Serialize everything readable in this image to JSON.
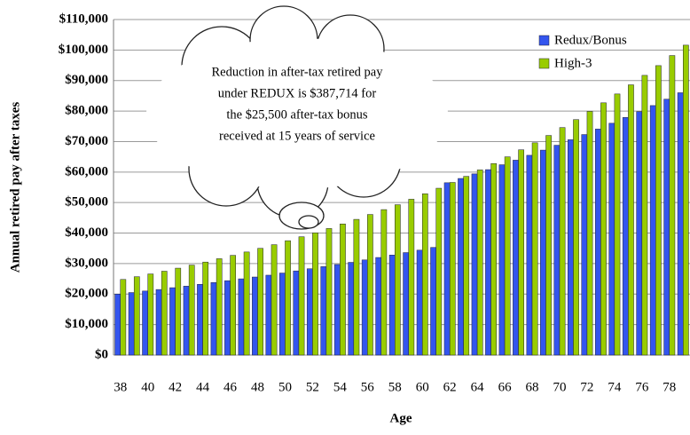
{
  "chart_data": {
    "type": "bar",
    "xlabel": "Age",
    "ylabel": "Annual retired pay after taxes",
    "annotation": [
      "Reduction in after-tax retired pay",
      "under REDUX is $387,714 for",
      "the $25,500 after-tax bonus",
      "received at 15 years of service"
    ],
    "categories": [
      38,
      null,
      40,
      null,
      42,
      null,
      44,
      null,
      46,
      null,
      48,
      null,
      50,
      null,
      52,
      null,
      54,
      null,
      56,
      null,
      58,
      null,
      60,
      null,
      62,
      null,
      64,
      null,
      66,
      null,
      68,
      null,
      70,
      null,
      72,
      null,
      74,
      null,
      76,
      null,
      78,
      null
    ],
    "series": [
      {
        "name": "Redux/Bonus",
        "color": "#3355ee",
        "values": [
          20000,
          20500,
          21000,
          21500,
          22100,
          22600,
          23200,
          23800,
          24400,
          25000,
          25600,
          26200,
          26900,
          27600,
          28300,
          29000,
          29700,
          30400,
          31200,
          32000,
          32800,
          33600,
          34400,
          35300,
          56500,
          57900,
          59400,
          60800,
          62400,
          63900,
          65500,
          67200,
          68800,
          70600,
          72300,
          74100,
          76000,
          77900,
          79800,
          81800,
          83900,
          86000
        ]
      },
      {
        "name": "High-3",
        "color": "#99cc00",
        "values": [
          24800,
          25700,
          26600,
          27500,
          28500,
          29500,
          30500,
          31600,
          32700,
          33800,
          35000,
          36200,
          37500,
          38800,
          40100,
          41500,
          43000,
          44500,
          46100,
          47700,
          49300,
          51100,
          52900,
          54700,
          56600,
          58600,
          60700,
          62800,
          65000,
          67300,
          69600,
          72000,
          74600,
          77200,
          79900,
          82700,
          85600,
          88600,
          91700,
          94900,
          98200,
          101600
        ]
      }
    ],
    "ylim": [
      0,
      110000
    ],
    "yticks": [
      {
        "value": 0,
        "label": "$0"
      },
      {
        "value": 10000,
        "label": "$10,000"
      },
      {
        "value": 20000,
        "label": "$20,000"
      },
      {
        "value": 30000,
        "label": "$30,000"
      },
      {
        "value": 40000,
        "label": "$40,000"
      },
      {
        "value": 50000,
        "label": "$50,000"
      },
      {
        "value": 60000,
        "label": "$60,000"
      },
      {
        "value": 70000,
        "label": "$70,000"
      },
      {
        "value": 80000,
        "label": "$80,000"
      },
      {
        "value": 90000,
        "label": "$90,000"
      },
      {
        "value": 100000,
        "label": "$100,000"
      },
      {
        "value": 110000,
        "label": "$110,000"
      }
    ],
    "grid": true,
    "legend": "top-right"
  }
}
